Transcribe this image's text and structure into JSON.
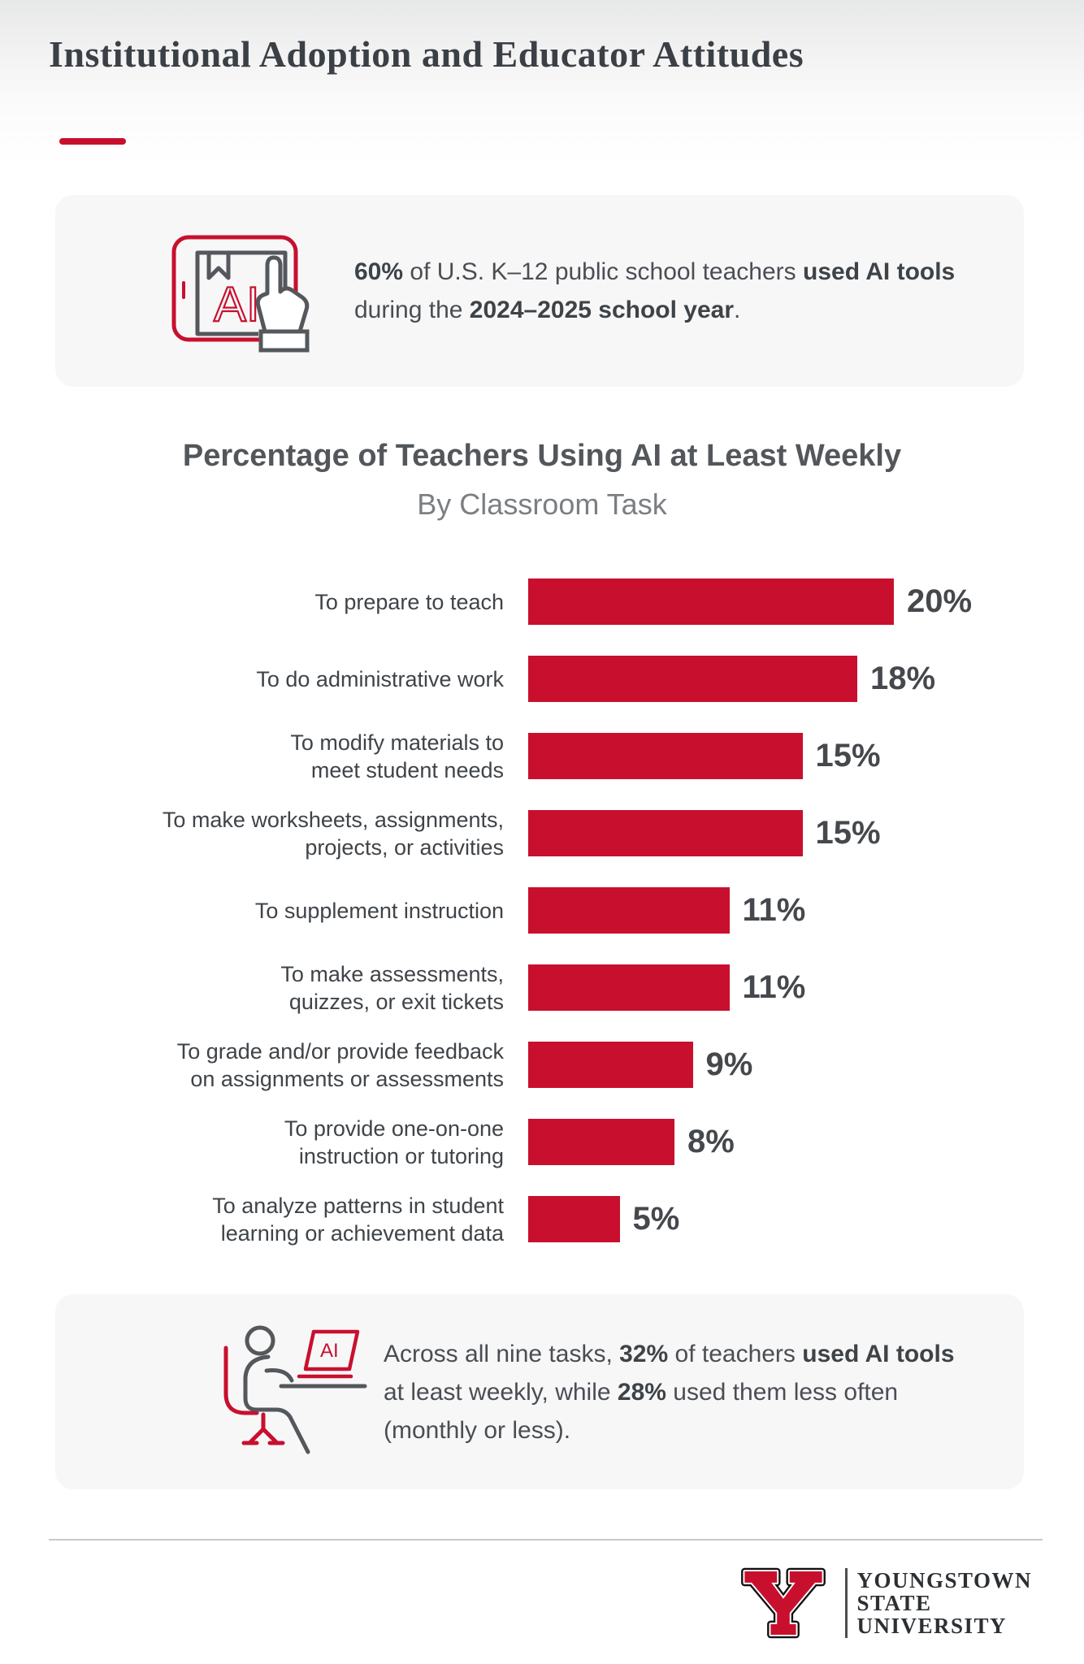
{
  "colors": {
    "red": "#C8102E",
    "ink": "#54575b",
    "ink_dark": "#3e4347"
  },
  "header": {
    "title": "Institutional Adoption and Educator Attitudes"
  },
  "cards": [
    {
      "icon": "tablet-ai-icon",
      "segments": [
        {
          "t": "60%",
          "b": true
        },
        {
          "t": " of U.S. K–12 public school teachers ",
          "b": false
        },
        {
          "t": "used AI tools",
          "b": true
        },
        {
          "t": " during the ",
          "b": false
        },
        {
          "t": "2024–2025 school year",
          "b": true
        },
        {
          "t": ".",
          "b": false
        }
      ]
    },
    {
      "icon": "person-desk-icon",
      "segments": [
        {
          "t": "Across all nine tasks, ",
          "b": false
        },
        {
          "t": "32%",
          "b": true
        },
        {
          "t": " of teachers ",
          "b": false
        },
        {
          "t": "used AI tools",
          "b": true
        },
        {
          "t": " at least weekly, while ",
          "b": false
        },
        {
          "t": "28%",
          "b": true
        },
        {
          "t": " used them less often (monthly or less).",
          "b": false
        }
      ]
    }
  ],
  "icons": {
    "tablet_label": "AI",
    "laptop_label": "AI"
  },
  "chart_data": {
    "type": "bar",
    "orientation": "horizontal",
    "title": "Percentage of Teachers Using AI at Least Weekly",
    "subtitle": "By Classroom Task",
    "unit": "%",
    "xlim": [
      0,
      20
    ],
    "bar_color": "#C8102E",
    "grid": false,
    "legend": false,
    "rows": [
      {
        "label_lines": [
          "To prepare to teach"
        ],
        "value": 20,
        "display": "20%"
      },
      {
        "label_lines": [
          "To do administrative work"
        ],
        "value": 18,
        "display": "18%"
      },
      {
        "label_lines": [
          "To modify materials to",
          "meet student needs"
        ],
        "value": 15,
        "display": "15%"
      },
      {
        "label_lines": [
          "To make worksheets, assignments,",
          "projects, or activities"
        ],
        "value": 15,
        "display": "15%"
      },
      {
        "label_lines": [
          "To supplement instruction"
        ],
        "value": 11,
        "display": "11%"
      },
      {
        "label_lines": [
          "To make assessments,",
          "quizzes, or exit tickets"
        ],
        "value": 11,
        "display": "11%"
      },
      {
        "label_lines": [
          "To grade and/or provide feedback",
          "on assignments or assessments"
        ],
        "value": 9,
        "display": "9%"
      },
      {
        "label_lines": [
          "To provide one-on-one",
          "instruction or tutoring"
        ],
        "value": 8,
        "display": "8%"
      },
      {
        "label_lines": [
          "To analyze patterns in student",
          "learning or achievement data"
        ],
        "value": 5,
        "display": "5%"
      }
    ]
  },
  "footer": {
    "university_lines": [
      "YOUNGSTOWN",
      "STATE",
      "UNIVERSITY"
    ]
  }
}
